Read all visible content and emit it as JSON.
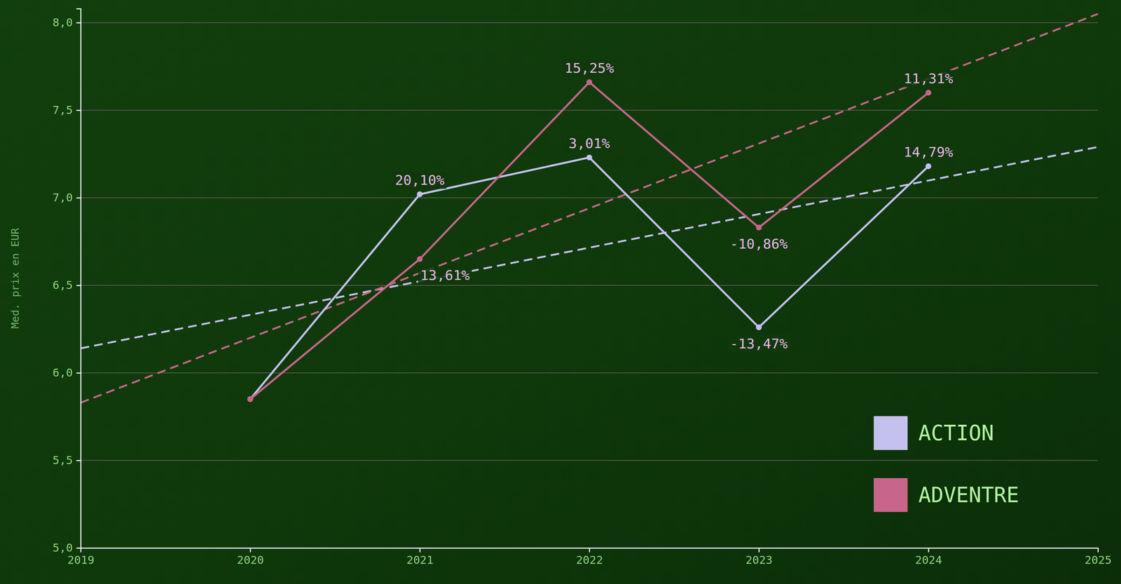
{
  "chart_data": {
    "type": "line",
    "y_label": "Med. prix en EUR",
    "x": [
      2020,
      2021,
      2022,
      2023,
      2024
    ],
    "series": [
      {
        "name": "ACTION",
        "color": "#c4c1ee",
        "marker": "circle",
        "line_style": "solid",
        "values": [
          5.85,
          7.02,
          7.23,
          6.26,
          7.18
        ],
        "change_labels": [
          null,
          "20,10%",
          "3,01%",
          "-13,47%",
          "14,79%"
        ],
        "trend": {
          "x": [
            2019,
            2025
          ],
          "values": [
            6.14,
            7.29
          ],
          "line_style": "dashed"
        }
      },
      {
        "name": "ADVENTRE",
        "color": "#c8658a",
        "marker": "circle",
        "line_style": "solid",
        "values": [
          5.85,
          6.65,
          7.66,
          6.83,
          7.6
        ],
        "change_labels": [
          null,
          "13,61%",
          "15,25%",
          "-10,86%",
          "11,31%"
        ],
        "trend": {
          "x": [
            2019,
            2025
          ],
          "values": [
            5.83,
            8.05
          ],
          "line_style": "dashed"
        }
      }
    ],
    "xlim": [
      2019,
      2025
    ],
    "xticks": [
      2019,
      2020,
      2021,
      2022,
      2023,
      2024,
      2025
    ],
    "ylim": [
      5.0,
      8.08
    ],
    "yticks": [
      {
        "value": 5,
        "label": "5,0"
      },
      {
        "value": 5.5,
        "label": "5,5"
      },
      {
        "value": 6,
        "label": "6,0"
      },
      {
        "value": 6.5,
        "label": "6,5"
      },
      {
        "value": 7,
        "label": "7,0"
      },
      {
        "value": 7.5,
        "label": "7,5"
      },
      {
        "value": 8,
        "label": "8,0"
      }
    ],
    "grid": true,
    "legend": "lower right"
  }
}
